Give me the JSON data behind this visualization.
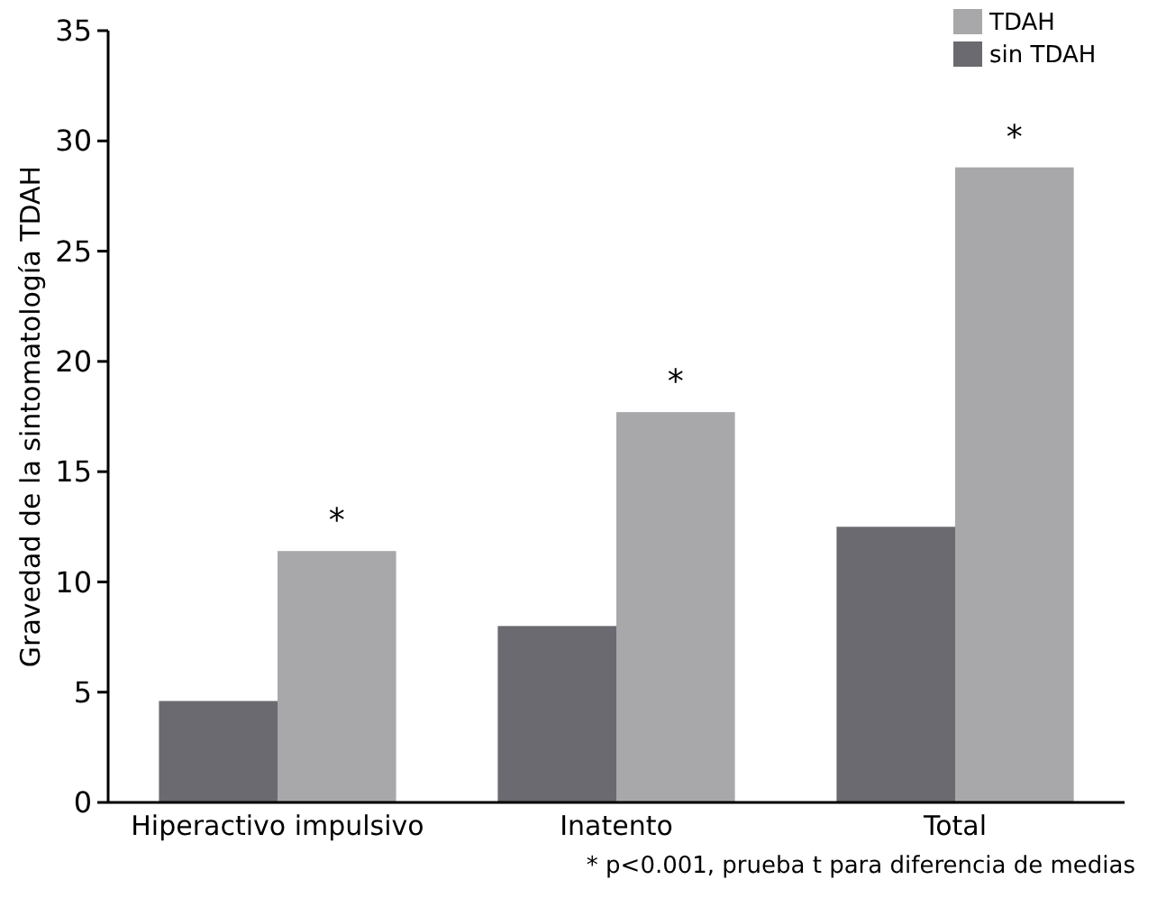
{
  "chart_data": {
    "type": "bar",
    "ylabel": "Gravedad de la sintomatología TDAH",
    "categories": [
      "Hiperactivo impulsivo",
      "Inatento",
      "Total"
    ],
    "series": [
      {
        "name": "sin TDAH",
        "color": "#6b6a70",
        "values": [
          4.6,
          8.0,
          12.5
        ]
      },
      {
        "name": "TDAH",
        "color": "#a8a8ab",
        "values": [
          11.4,
          17.7,
          28.8
        ]
      }
    ],
    "ylim": [
      0,
      35
    ],
    "yticks": [
      0,
      5,
      10,
      15,
      20,
      25,
      30,
      35
    ],
    "grid": false,
    "legend": "top right",
    "annotations": [
      "*",
      "*",
      "*",
      "* p<0.001, prueba t para diferencia de medias"
    ]
  }
}
